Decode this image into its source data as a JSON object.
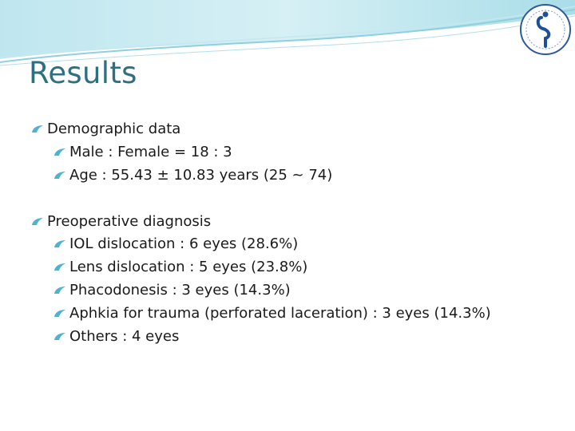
{
  "slide": {
    "title": "Results",
    "accent_color": "#2f6f82",
    "bullet_color": "#4db3d0"
  },
  "sections": [
    {
      "heading": "Demographic data",
      "items": [
        "Male  :  Female   =  18 : 3",
        "Age  :  55.43 ± 10.83 years (25 ~ 74)"
      ]
    },
    {
      "heading": "Preoperative  diagnosis",
      "items": [
        "IOL dislocation : 6 eyes (28.6%)",
        "Lens dislocation :  5 eyes (23.8%)",
        "Phacodonesis : 3 eyes (14.3%)",
        "Aphkia for trauma (perforated laceration) :  3 eyes (14.3%)",
        "Others : 4 eyes"
      ]
    }
  ],
  "logo": {
    "icon": "university-seal-icon"
  }
}
